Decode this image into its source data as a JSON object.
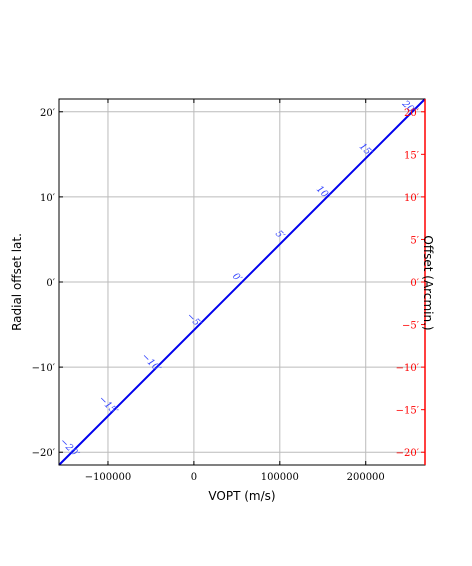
{
  "chart_data": {
    "type": "line",
    "xlabel": "VOPT (m/s)",
    "ylabel": "Radial offset lat.",
    "y2label": "Offset (Arcmin.)",
    "xlim": [
      -157000,
      269000
    ],
    "ylim": [
      -21.5,
      21.5
    ],
    "y2lim": [
      -21.5,
      21.5
    ],
    "xticks": [
      -100000,
      0,
      100000,
      200000
    ],
    "xtick_labels": [
      "−100000",
      "0",
      "100000",
      "200000"
    ],
    "yticks": [
      -20,
      -10,
      0,
      10,
      20
    ],
    "ytick_labels": [
      "−20′",
      "−10′",
      "0′",
      "10′",
      "20′"
    ],
    "y2ticks": [
      -20,
      -15,
      -10,
      -5,
      0,
      5,
      10,
      15,
      20
    ],
    "y2tick_labels": [
      "−20′",
      "−15′",
      "−10′",
      "−5′",
      "0′",
      "5′",
      "10′",
      "15′",
      "20′"
    ],
    "grid": true,
    "series": [
      {
        "x": [
          -157000,
          269000
        ],
        "y": [
          -21.5,
          21.5
        ],
        "color": "#0000ee"
      }
    ],
    "line_labels": [
      {
        "text": "−20′",
        "x": -145000,
        "y": -19.5
      },
      {
        "text": "−15′",
        "x": -100000,
        "y": -14.5
      },
      {
        "text": "−10′",
        "x": -50000,
        "y": -9.5
      },
      {
        "text": "−5′",
        "x": 0,
        "y": -4.5
      },
      {
        "text": "0′",
        "x": 50000,
        "y": 0.5
      },
      {
        "text": "5′",
        "x": 100000,
        "y": 5.5
      },
      {
        "text": "10′",
        "x": 150000,
        "y": 10.5
      },
      {
        "text": "15′",
        "x": 200000,
        "y": 15.5
      },
      {
        "text": "20′",
        "x": 250000,
        "y": 20.5
      }
    ],
    "colors": {
      "line": "#0000ee",
      "line_labels": "#3344ff",
      "right_axis": "#ff0000",
      "grid": "#bbbbbb",
      "frame": "#000000"
    }
  }
}
